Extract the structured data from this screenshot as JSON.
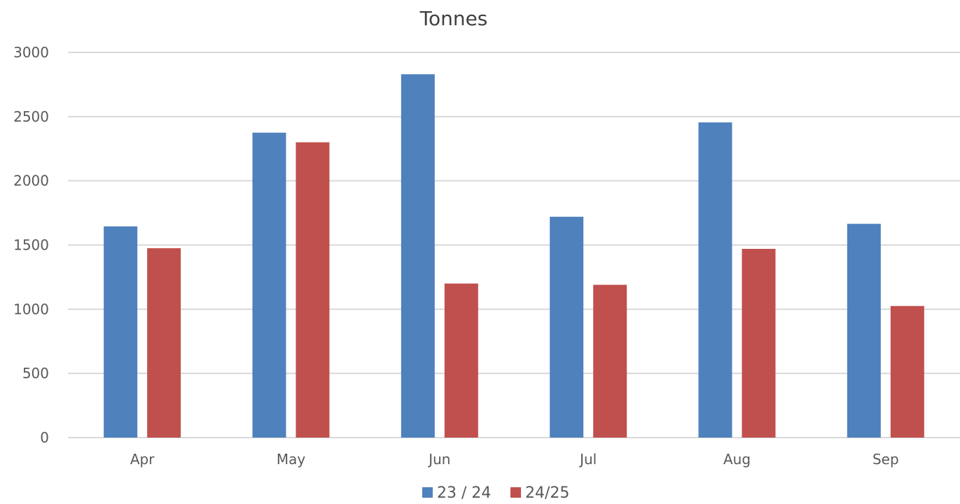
{
  "chart_data": {
    "type": "bar",
    "title": "Tonnes",
    "categories": [
      "Apr",
      "May",
      "Jun",
      "Jul",
      "Aug",
      "Sep"
    ],
    "series": [
      {
        "name": "23 / 24",
        "color": "#4f81bd",
        "values": [
          1645,
          2375,
          2830,
          1720,
          2455,
          1665
        ]
      },
      {
        "name": "24/25",
        "color": "#c0504d",
        "values": [
          1475,
          2300,
          1200,
          1190,
          1470,
          1025
        ]
      }
    ],
    "ylim": [
      0,
      3000
    ],
    "yticks": [
      "0",
      "500",
      "1000",
      "1500",
      "2000",
      "2500",
      "3000"
    ],
    "grid": true,
    "legend": "bottom-center"
  }
}
